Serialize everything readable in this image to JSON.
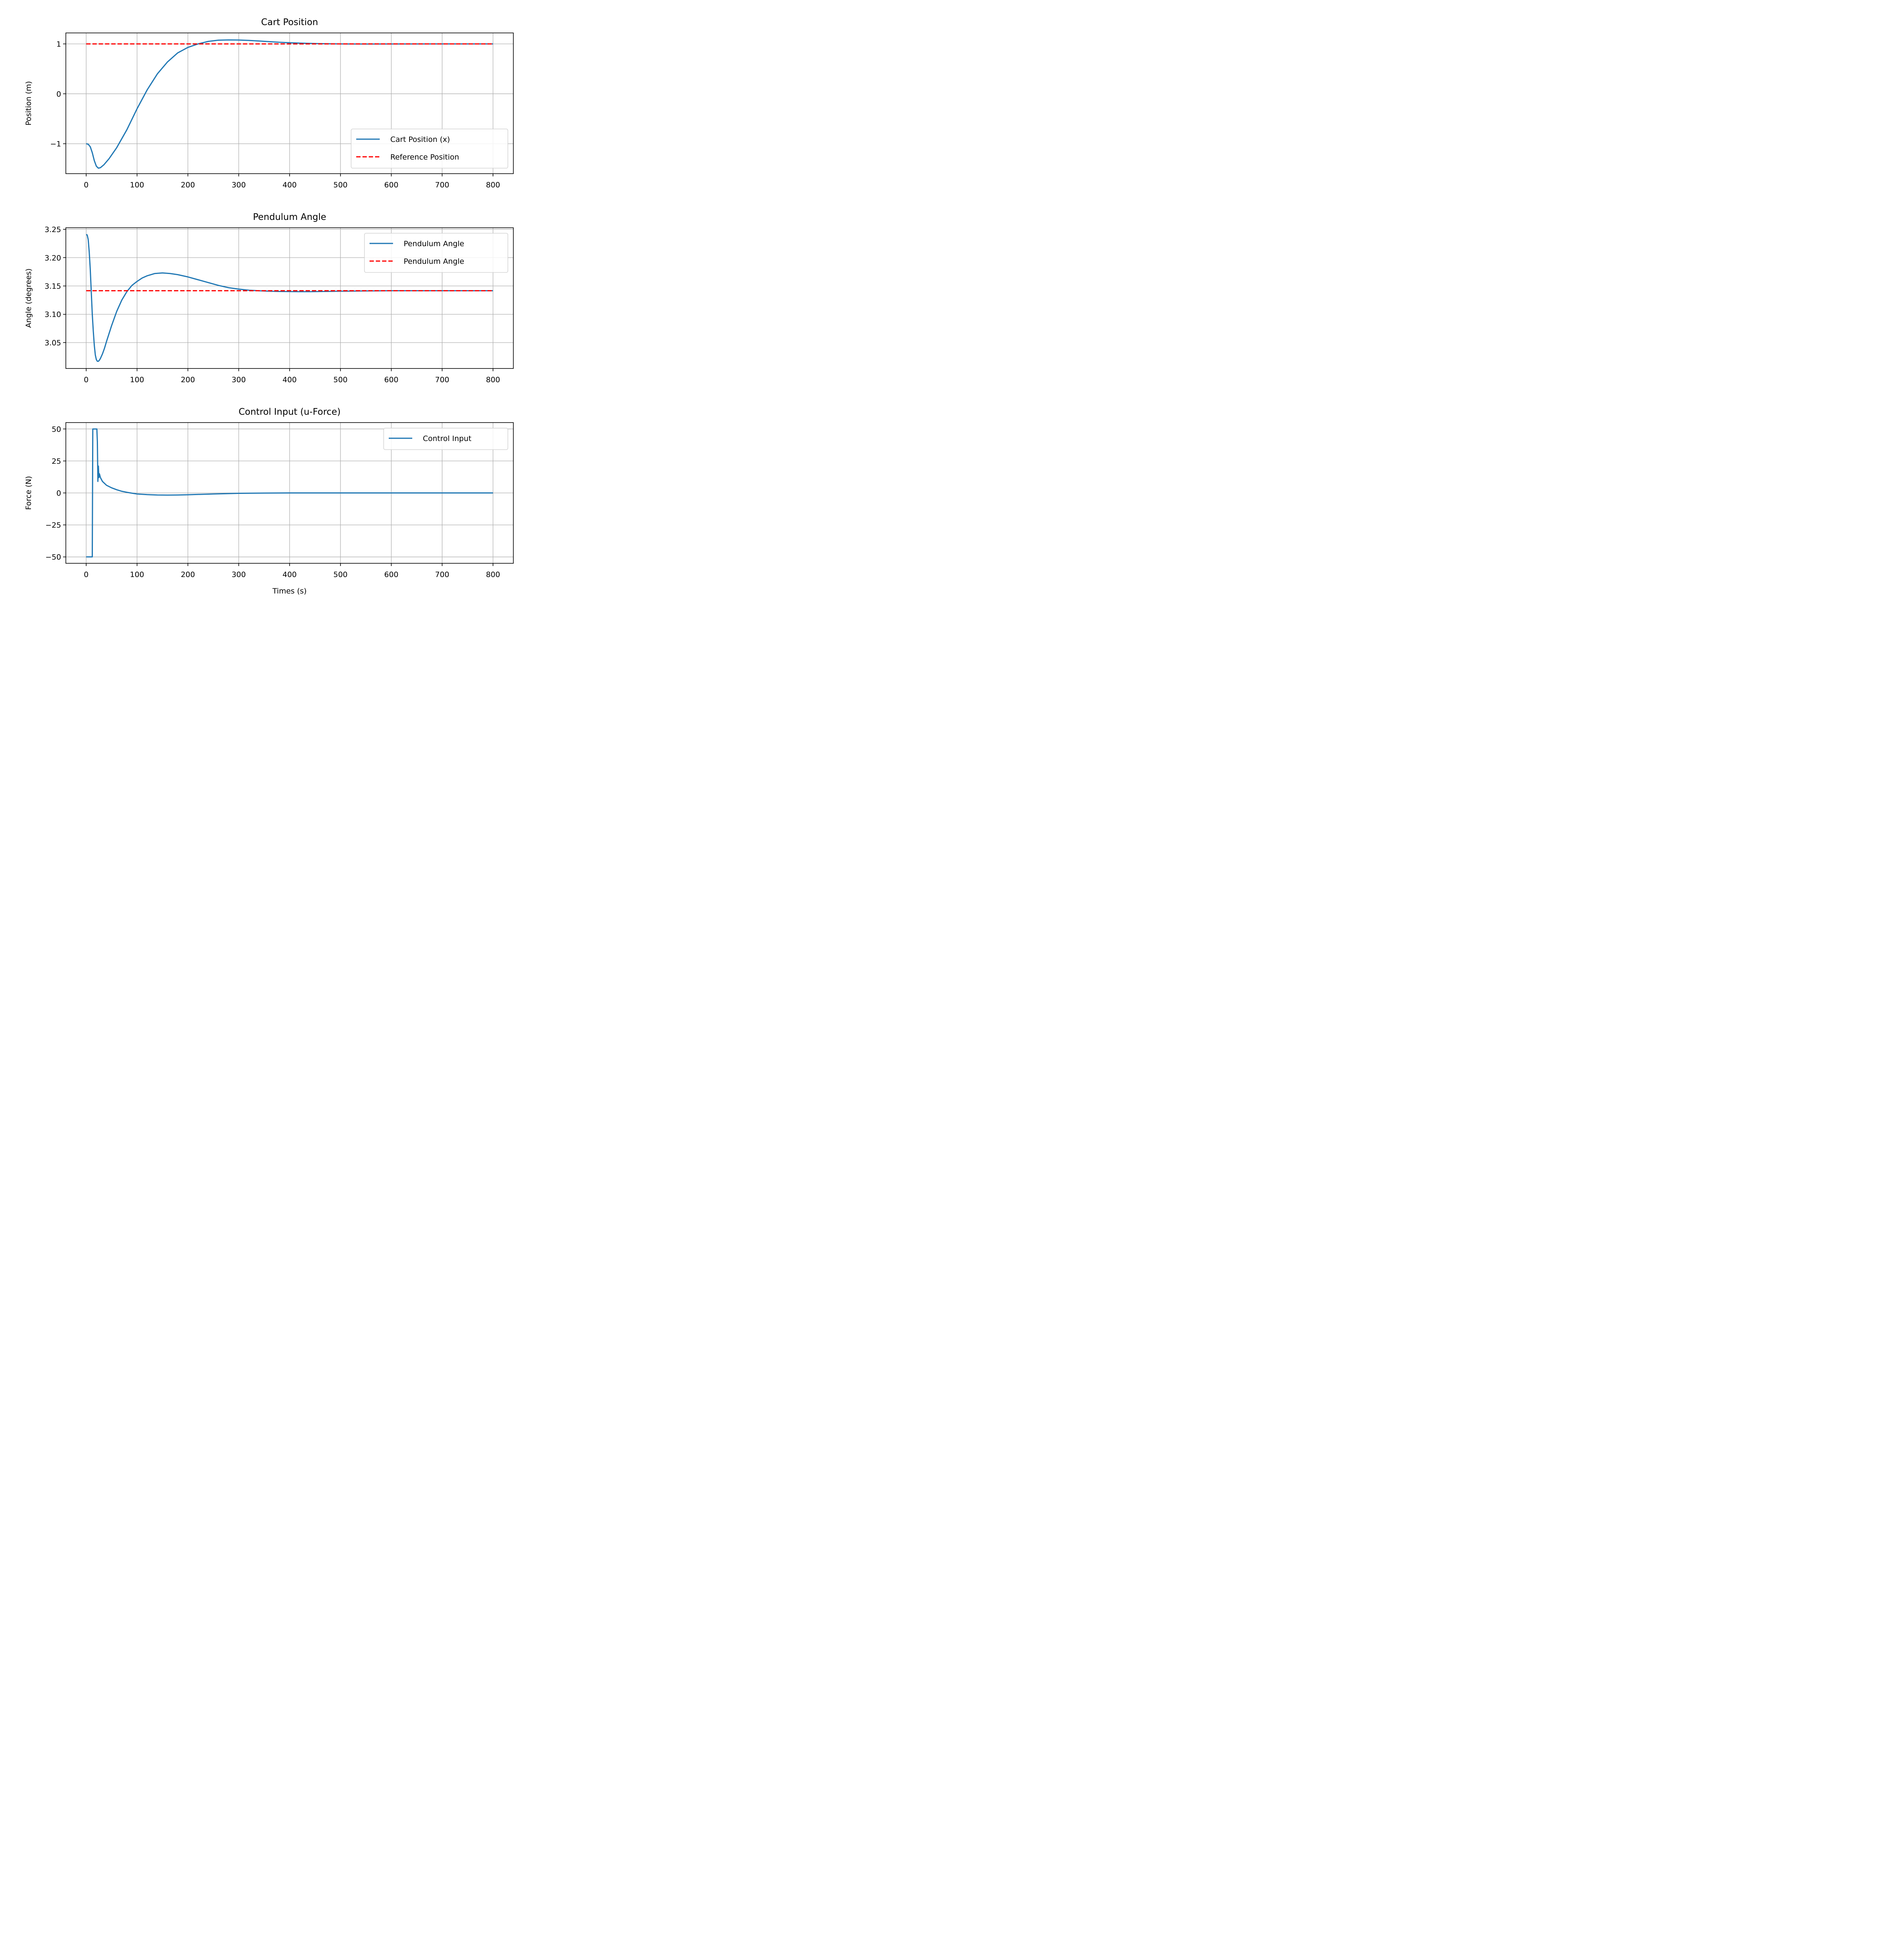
{
  "chart_data": [
    {
      "type": "line",
      "title": "Cart Position",
      "xlabel": "",
      "ylabel": "Position (m)",
      "xlim": [
        -40,
        840
      ],
      "ylim": [
        -1.6,
        1.22
      ],
      "xticks": [
        0,
        100,
        200,
        300,
        400,
        500,
        600,
        700,
        800
      ],
      "xtick_labels": [
        "0",
        "100",
        "200",
        "300",
        "400",
        "500",
        "600",
        "700",
        "800"
      ],
      "yticks": [
        -1,
        0,
        1
      ],
      "ytick_labels": [
        "−1",
        "0",
        "1"
      ],
      "grid": true,
      "legend_position": "lower right",
      "series": [
        {
          "name": "Cart Position (x)",
          "color": "#1f77b4",
          "style": "solid",
          "x": [
            0,
            4,
            8,
            12,
            16,
            20,
            24,
            28,
            35,
            45,
            60,
            80,
            100,
            120,
            140,
            160,
            180,
            200,
            220,
            240,
            260,
            280,
            300,
            320,
            340,
            360,
            380,
            400,
            420,
            440,
            460,
            480,
            500,
            550,
            600,
            700,
            800
          ],
          "y": [
            -1.0,
            -1.01,
            -1.06,
            -1.18,
            -1.34,
            -1.45,
            -1.49,
            -1.48,
            -1.42,
            -1.3,
            -1.08,
            -0.72,
            -0.3,
            0.08,
            0.4,
            0.64,
            0.82,
            0.93,
            1.0,
            1.05,
            1.075,
            1.08,
            1.078,
            1.07,
            1.058,
            1.045,
            1.033,
            1.024,
            1.016,
            1.01,
            1.005,
            1.002,
            1.0,
            0.998,
            0.999,
            1.0,
            1.0
          ]
        },
        {
          "name": "Reference Position",
          "color": "#ff0000",
          "style": "dashed",
          "x": [
            0,
            800
          ],
          "y": [
            1.0,
            1.0
          ]
        }
      ]
    },
    {
      "type": "line",
      "title": "Pendulum Angle",
      "xlabel": "",
      "ylabel": "Angle (degrees)",
      "xlim": [
        -40,
        840
      ],
      "ylim": [
        3.0043,
        3.2528
      ],
      "xticks": [
        0,
        100,
        200,
        300,
        400,
        500,
        600,
        700,
        800
      ],
      "xtick_labels": [
        "0",
        "100",
        "200",
        "300",
        "400",
        "500",
        "600",
        "700",
        "800"
      ],
      "yticks": [
        3.05,
        3.1,
        3.15,
        3.2,
        3.25
      ],
      "ytick_labels": [
        "3.05",
        "3.10",
        "3.15",
        "3.20",
        "3.25"
      ],
      "grid": true,
      "legend_position": "upper right",
      "series": [
        {
          "name": "Pendulum Angle",
          "color": "#1f77b4",
          "style": "solid",
          "x": [
            0,
            2,
            4,
            6,
            8,
            10,
            12,
            14,
            16,
            18,
            20,
            22,
            24,
            26,
            28,
            32,
            36,
            40,
            50,
            60,
            70,
            80,
            90,
            100,
            110,
            120,
            135,
            150,
            165,
            180,
            200,
            220,
            240,
            260,
            280,
            300,
            320,
            340,
            360,
            380,
            400,
            420,
            440,
            460,
            480,
            500,
            550,
            600,
            700,
            800
          ],
          "y": [
            3.241,
            3.24,
            3.232,
            3.21,
            3.18,
            3.14,
            3.1,
            3.07,
            3.045,
            3.028,
            3.02,
            3.017,
            3.017,
            3.019,
            3.022,
            3.03,
            3.04,
            3.052,
            3.08,
            3.105,
            3.125,
            3.14,
            3.151,
            3.158,
            3.164,
            3.168,
            3.172,
            3.173,
            3.172,
            3.17,
            3.166,
            3.161,
            3.156,
            3.151,
            3.147,
            3.1445,
            3.1425,
            3.1415,
            3.1408,
            3.1403,
            3.1401,
            3.14,
            3.14,
            3.1402,
            3.1405,
            3.1408,
            3.1413,
            3.1416,
            3.1416,
            3.1416
          ]
        },
        {
          "name": "Pendulum Angle",
          "color": "#ff0000",
          "style": "dashed",
          "x": [
            0,
            800
          ],
          "y": [
            3.1416,
            3.1416
          ]
        }
      ]
    },
    {
      "type": "line",
      "title": "Control Input (u-Force)",
      "xlabel": "Times (s)",
      "ylabel": "Force (N)",
      "xlim": [
        -40,
        840
      ],
      "ylim": [
        -55,
        55
      ],
      "xticks": [
        0,
        100,
        200,
        300,
        400,
        500,
        600,
        700,
        800
      ],
      "xtick_labels": [
        "0",
        "100",
        "200",
        "300",
        "400",
        "500",
        "600",
        "700",
        "800"
      ],
      "yticks": [
        -50,
        -25,
        0,
        25,
        50
      ],
      "ytick_labels": [
        "−50",
        "−25",
        "0",
        "25",
        "50"
      ],
      "grid": true,
      "legend_position": "upper right",
      "series": [
        {
          "name": "Control Input",
          "color": "#1f77b4",
          "style": "solid",
          "x": [
            0,
            10,
            12,
            13,
            21,
            22,
            23,
            24,
            25,
            26,
            28,
            32,
            40,
            50,
            60,
            70,
            80,
            90,
            100,
            120,
            140,
            160,
            180,
            200,
            250,
            300,
            350,
            400,
            500,
            600,
            700,
            800
          ],
          "y": [
            -50,
            -50,
            -50,
            50,
            50,
            40,
            9,
            21,
            12,
            15,
            12,
            9,
            6,
            4,
            2.5,
            1.3,
            0.5,
            -0.2,
            -0.8,
            -1.3,
            -1.6,
            -1.7,
            -1.6,
            -1.4,
            -0.8,
            -0.3,
            -0.1,
            0.0,
            0.0,
            0.0,
            0.0,
            0.0
          ]
        }
      ]
    }
  ]
}
